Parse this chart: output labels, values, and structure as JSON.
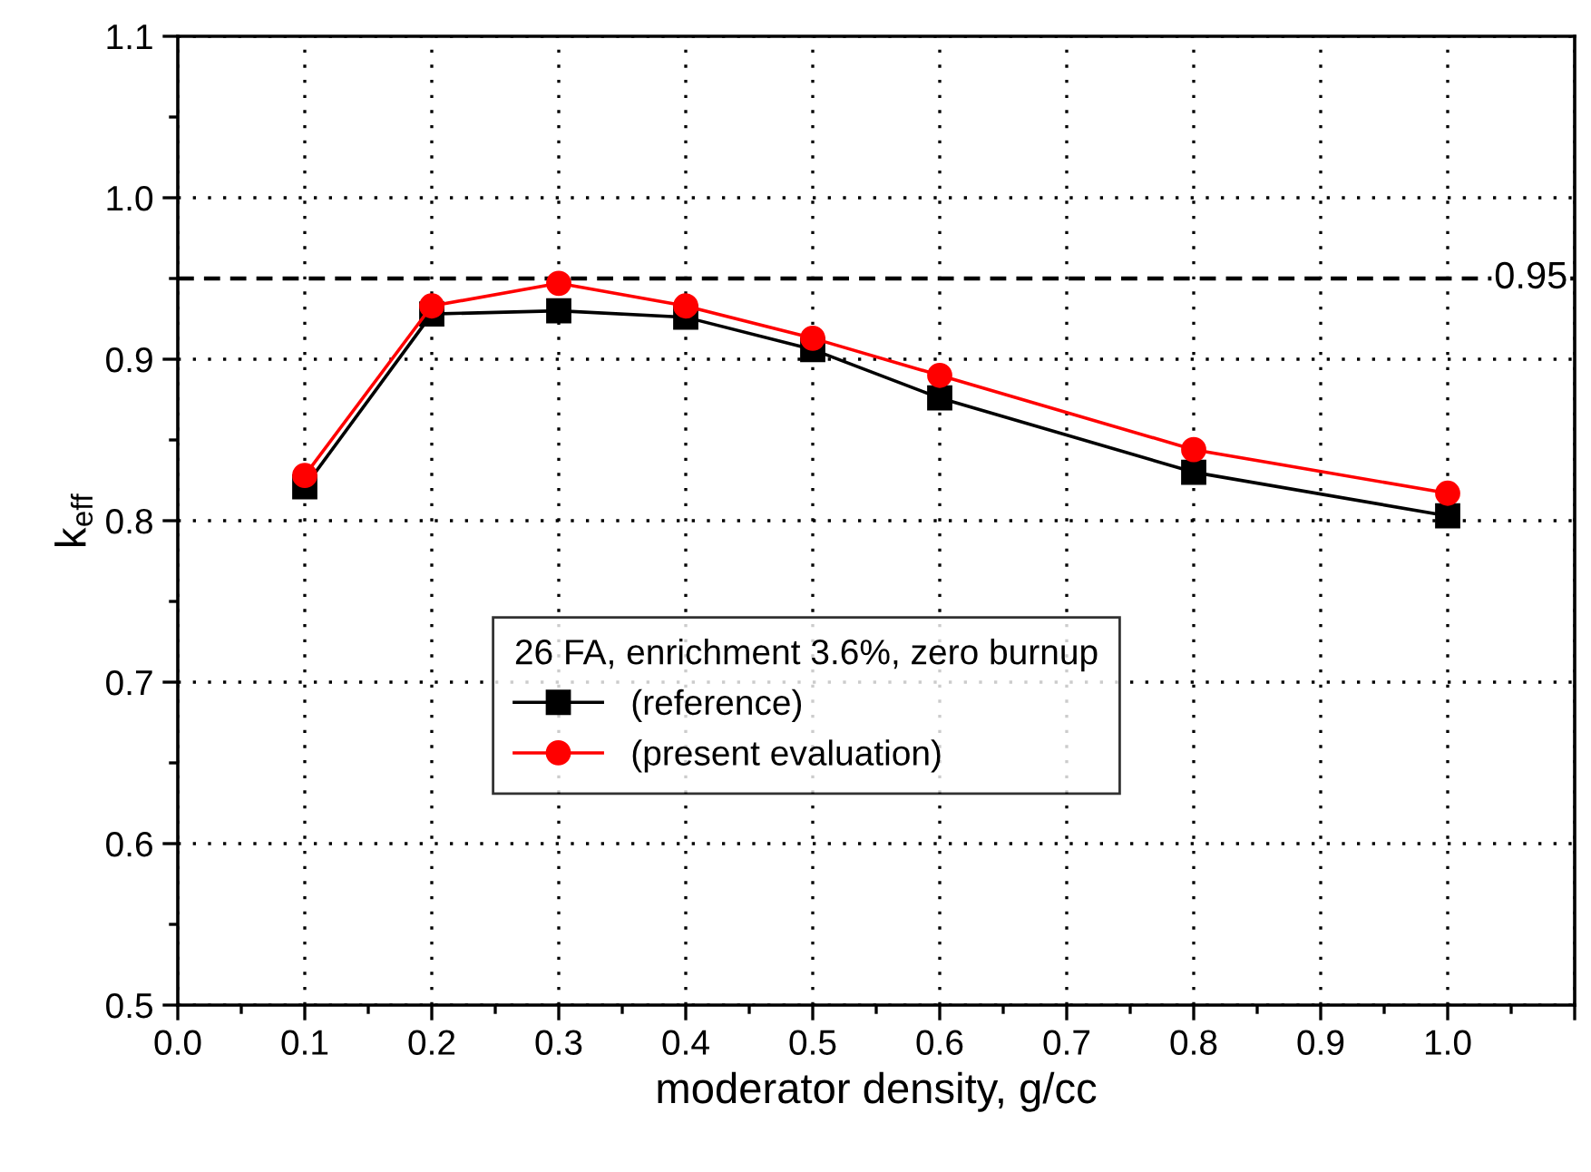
{
  "chart_data": {
    "type": "line",
    "xlabel": "moderator density, g/cc",
    "ylabel": "k$_{eff}$",
    "x": [
      0.1,
      0.2,
      0.3,
      0.4,
      0.5,
      0.6,
      0.8,
      1.0
    ],
    "series": [
      {
        "name": "(reference)",
        "color": "#000000",
        "marker": "square",
        "values": [
          0.821,
          0.928,
          0.93,
          0.926,
          0.906,
          0.876,
          0.83,
          0.803
        ]
      },
      {
        "name": "(present evaluation)",
        "color": "#ff0000",
        "marker": "circle",
        "values": [
          0.828,
          0.933,
          0.947,
          0.933,
          0.913,
          0.89,
          0.844,
          0.817
        ]
      }
    ],
    "legend_title": "26 FA, enrichment 3.6%, zero burnup",
    "legend": "bottom",
    "xlim": [
      0.0,
      1.1
    ],
    "xticks": [
      {
        "value": 0.0,
        "label": "0.0"
      },
      0.1,
      0.2,
      0.3,
      0.4,
      0.5,
      0.6,
      0.7,
      0.8,
      0.9,
      {
        "value": 1.0,
        "label": "1.0"
      },
      {
        "value": 1.1,
        "label": null
      }
    ],
    "ylim": [
      0.5,
      1.1
    ],
    "yticks": [
      0.5,
      0.6,
      0.7,
      0.8,
      0.9,
      {
        "value": 1.0,
        "label": "1.0"
      },
      1.1
    ],
    "grid": true,
    "line_style": "solid",
    "ref_lines": [
      {
        "axis": "y",
        "value": 0.95,
        "label": "0.95",
        "color": "#000000",
        "line_style": "dashed"
      }
    ]
  }
}
